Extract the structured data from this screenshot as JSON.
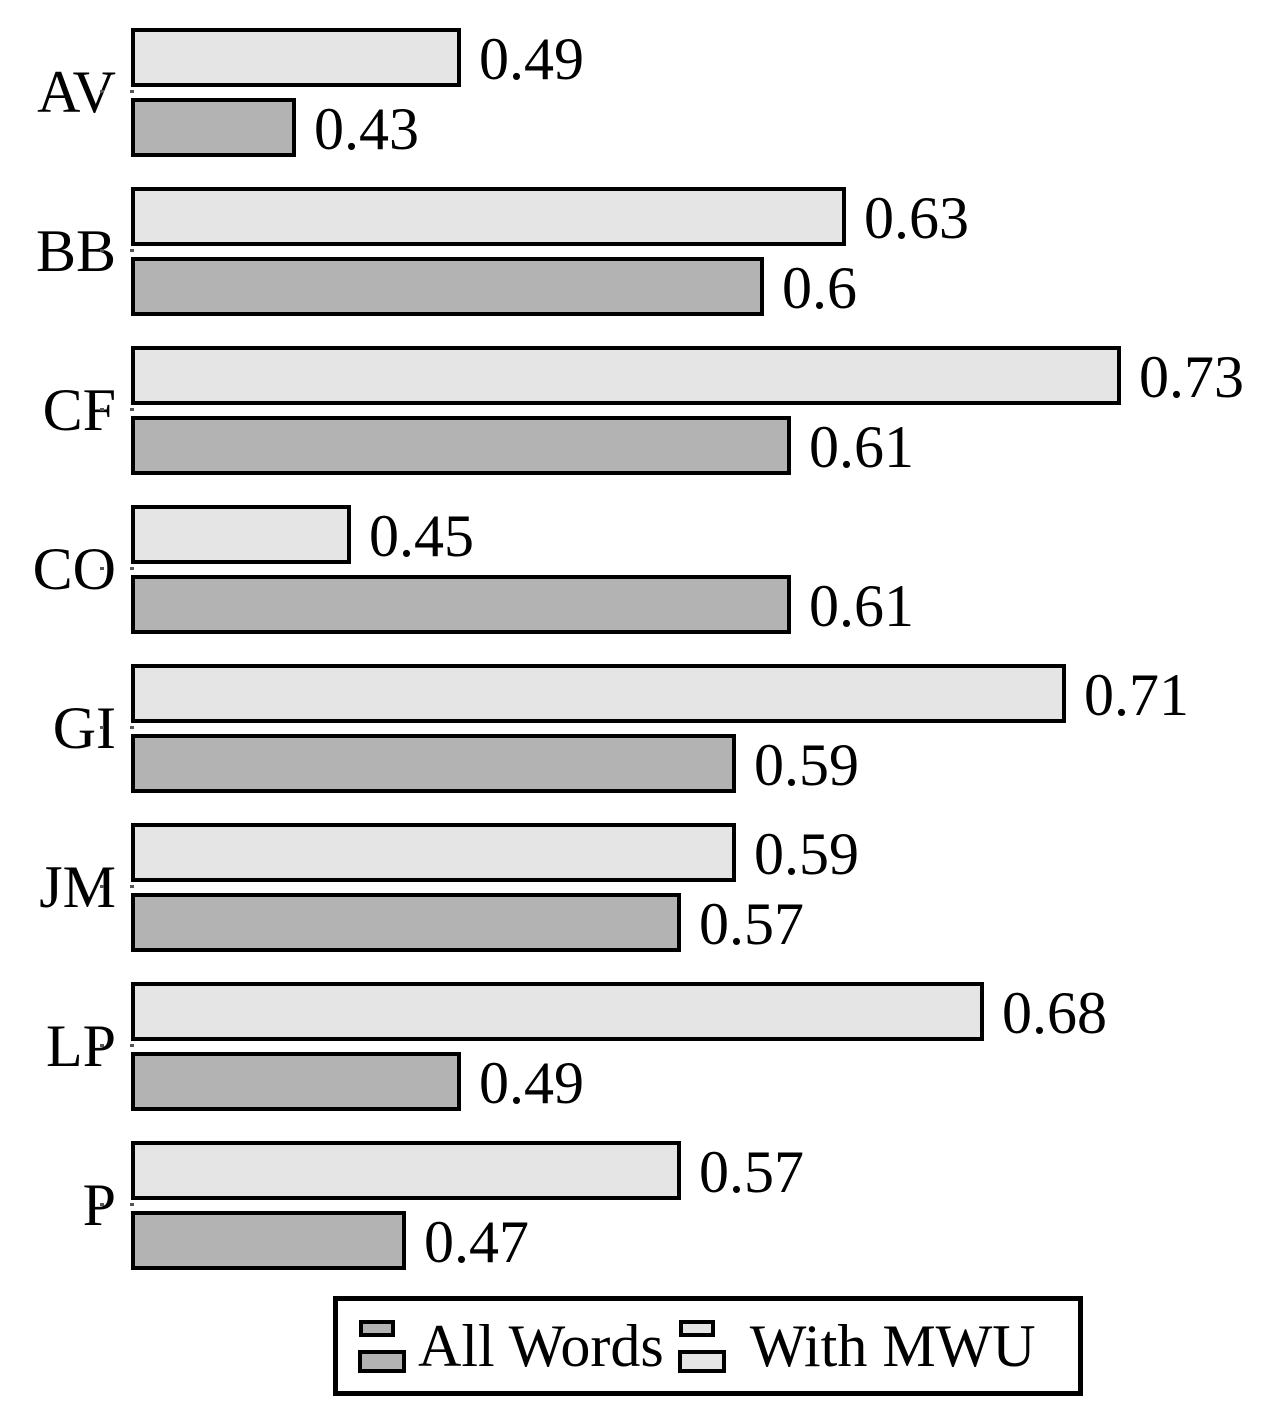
{
  "figure": {
    "background": "#ffffff",
    "text_color": "#000000"
  },
  "chart_data": {
    "type": "bar",
    "orientation": "horizontal",
    "title": "",
    "xlabel": "",
    "ylabel": "",
    "categories": [
      "AV",
      "BB",
      "CF",
      "CO",
      "GI",
      "JM",
      "LP",
      "P"
    ],
    "series": [
      {
        "name": "With MWU",
        "color": "#e5e5e5",
        "values": [
          0.49,
          0.63,
          0.73,
          0.45,
          0.71,
          0.59,
          0.68,
          0.57
        ],
        "labels": [
          "0.49",
          "0.63",
          "0.73",
          "0.45",
          "0.71",
          "0.59",
          "0.68",
          "0.57"
        ]
      },
      {
        "name": "All Words",
        "color": "#b3b3b3",
        "values": [
          0.43,
          0.6,
          0.61,
          0.61,
          0.59,
          0.57,
          0.49,
          0.47
        ],
        "labels": [
          "0.43",
          "0.6",
          "0.61",
          "0.61",
          "0.59",
          "0.57",
          "0.49",
          "0.47"
        ]
      }
    ],
    "xlim": [
      0.37,
      0.78
    ],
    "grid": false,
    "bar_border_color": "#000000",
    "value_labels_shown": true,
    "legend": {
      "position": "bottom",
      "items": [
        {
          "label": "All Words",
          "color": "#b3b3b3"
        },
        {
          "label": "With MWU",
          "color": "#e5e5e5"
        }
      ]
    }
  }
}
